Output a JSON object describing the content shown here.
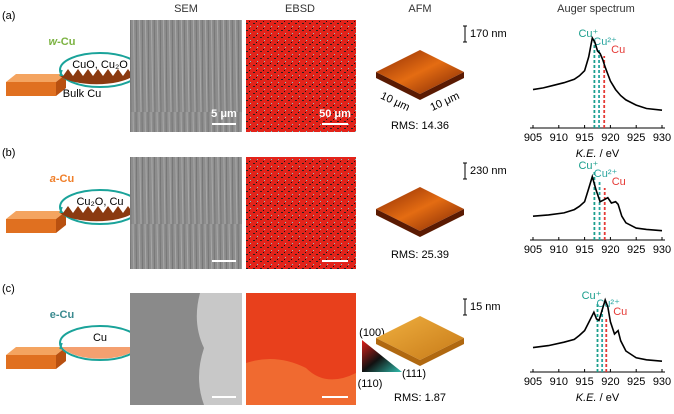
{
  "column_headers": [
    "SEM",
    "EBSD",
    "AFM",
    "Auger spectrum"
  ],
  "rows": [
    {
      "label": "(a)",
      "sample_letter": "w",
      "sample_rest": "-Cu",
      "sample_color": "#7cb342",
      "schematic_labels": [
        "CuO, Cu₂O",
        "Bulk Cu"
      ],
      "sem_scale": "5 μm",
      "ebsd_scale": "50 μm",
      "afm_height": "170 nm",
      "afm_axes": [
        "10 μm",
        "10 μm"
      ],
      "rms": "RMS: 14.36",
      "spectrum": {
        "type": "line",
        "xlim": [
          905,
          930
        ],
        "xticks": [
          905,
          910,
          915,
          920,
          925,
          930
        ],
        "xlabel_italic": "K.E.",
        "xlabel_rest": " / eV",
        "color": "#000000",
        "x": [
          905,
          907,
          909,
          911,
          913,
          914,
          915,
          915.8,
          916.5,
          917,
          917.5,
          918,
          918.5,
          919,
          919.5,
          920,
          921,
          922,
          923,
          925,
          927,
          930
        ],
        "y": [
          0.4,
          0.42,
          0.45,
          0.48,
          0.52,
          0.56,
          0.62,
          0.78,
          1.0,
          0.95,
          0.85,
          0.82,
          0.75,
          0.66,
          0.58,
          0.5,
          0.4,
          0.33,
          0.28,
          0.22,
          0.18,
          0.16
        ],
        "peaks": [
          {
            "label": "Cu⁺",
            "x": 916.9,
            "color": "#1a9e8c"
          },
          {
            "label": "Cu²⁺",
            "x": 917.8,
            "color": "#2aa6a0"
          },
          {
            "label": "Cu",
            "x": 918.8,
            "color": "#e53935"
          }
        ]
      }
    },
    {
      "label": "(b)",
      "sample_letter": "a",
      "sample_rest": "-Cu",
      "sample_color": "#f07f2a",
      "schematic_labels": [
        "Cu₂O, Cu"
      ],
      "afm_height": "230 nm",
      "rms": "RMS: 25.39",
      "spectrum": {
        "type": "line",
        "xlim": [
          905,
          930
        ],
        "xticks": [
          905,
          910,
          915,
          920,
          925,
          930
        ],
        "color": "#000000",
        "x": [
          905,
          908,
          911,
          913,
          914,
          915,
          915.8,
          916.5,
          917.2,
          918,
          918.8,
          919.5,
          920.2,
          921,
          921.5,
          922.2,
          923,
          925,
          927,
          930
        ],
        "y": [
          0.3,
          0.32,
          0.35,
          0.4,
          0.45,
          0.52,
          0.72,
          0.9,
          0.7,
          0.52,
          0.55,
          0.58,
          0.5,
          0.52,
          0.48,
          0.3,
          0.2,
          0.12,
          0.1,
          0.08
        ],
        "peaks": [
          {
            "label": "Cu⁺",
            "x": 916.9,
            "color": "#1a9e8c"
          },
          {
            "label": "Cu²⁺",
            "x": 917.9,
            "color": "#2aa6a0"
          },
          {
            "label": "Cu",
            "x": 918.9,
            "color": "#e53935"
          }
        ]
      }
    },
    {
      "label": "(c)",
      "sample_letter": "e",
      "sample_rest": "-Cu",
      "sample_color": "#3a8a8f",
      "schematic_labels": [
        "Cu"
      ],
      "afm_height": "15 nm",
      "rms": "RMS: 1.87",
      "ebsd_legend": [
        "(100)",
        "(111)",
        "(110)"
      ],
      "spectrum": {
        "type": "line",
        "xlim": [
          905,
          930
        ],
        "xticks": [
          905,
          910,
          915,
          920,
          925,
          930
        ],
        "xlabel_italic": "K.E.",
        "xlabel_rest": " / eV",
        "color": "#000000",
        "x": [
          905,
          908,
          911,
          913,
          914,
          915,
          916,
          916.8,
          917.3,
          917.8,
          918.4,
          919,
          919.5,
          920,
          920.8,
          921.5,
          922,
          923,
          925,
          927,
          930
        ],
        "y": [
          0.3,
          0.33,
          0.38,
          0.42,
          0.48,
          0.55,
          0.7,
          0.82,
          0.72,
          0.7,
          0.85,
          1.0,
          0.9,
          0.68,
          0.5,
          0.55,
          0.4,
          0.25,
          0.15,
          0.12,
          0.1
        ],
        "peaks": [
          {
            "label": "Cu⁺",
            "x": 917.5,
            "color": "#1a9e8c"
          },
          {
            "label": "Cu²⁺",
            "x": 918.4,
            "color": "#2aa6a0"
          },
          {
            "label": "Cu",
            "x": 919.2,
            "color": "#e53935"
          }
        ]
      }
    }
  ]
}
